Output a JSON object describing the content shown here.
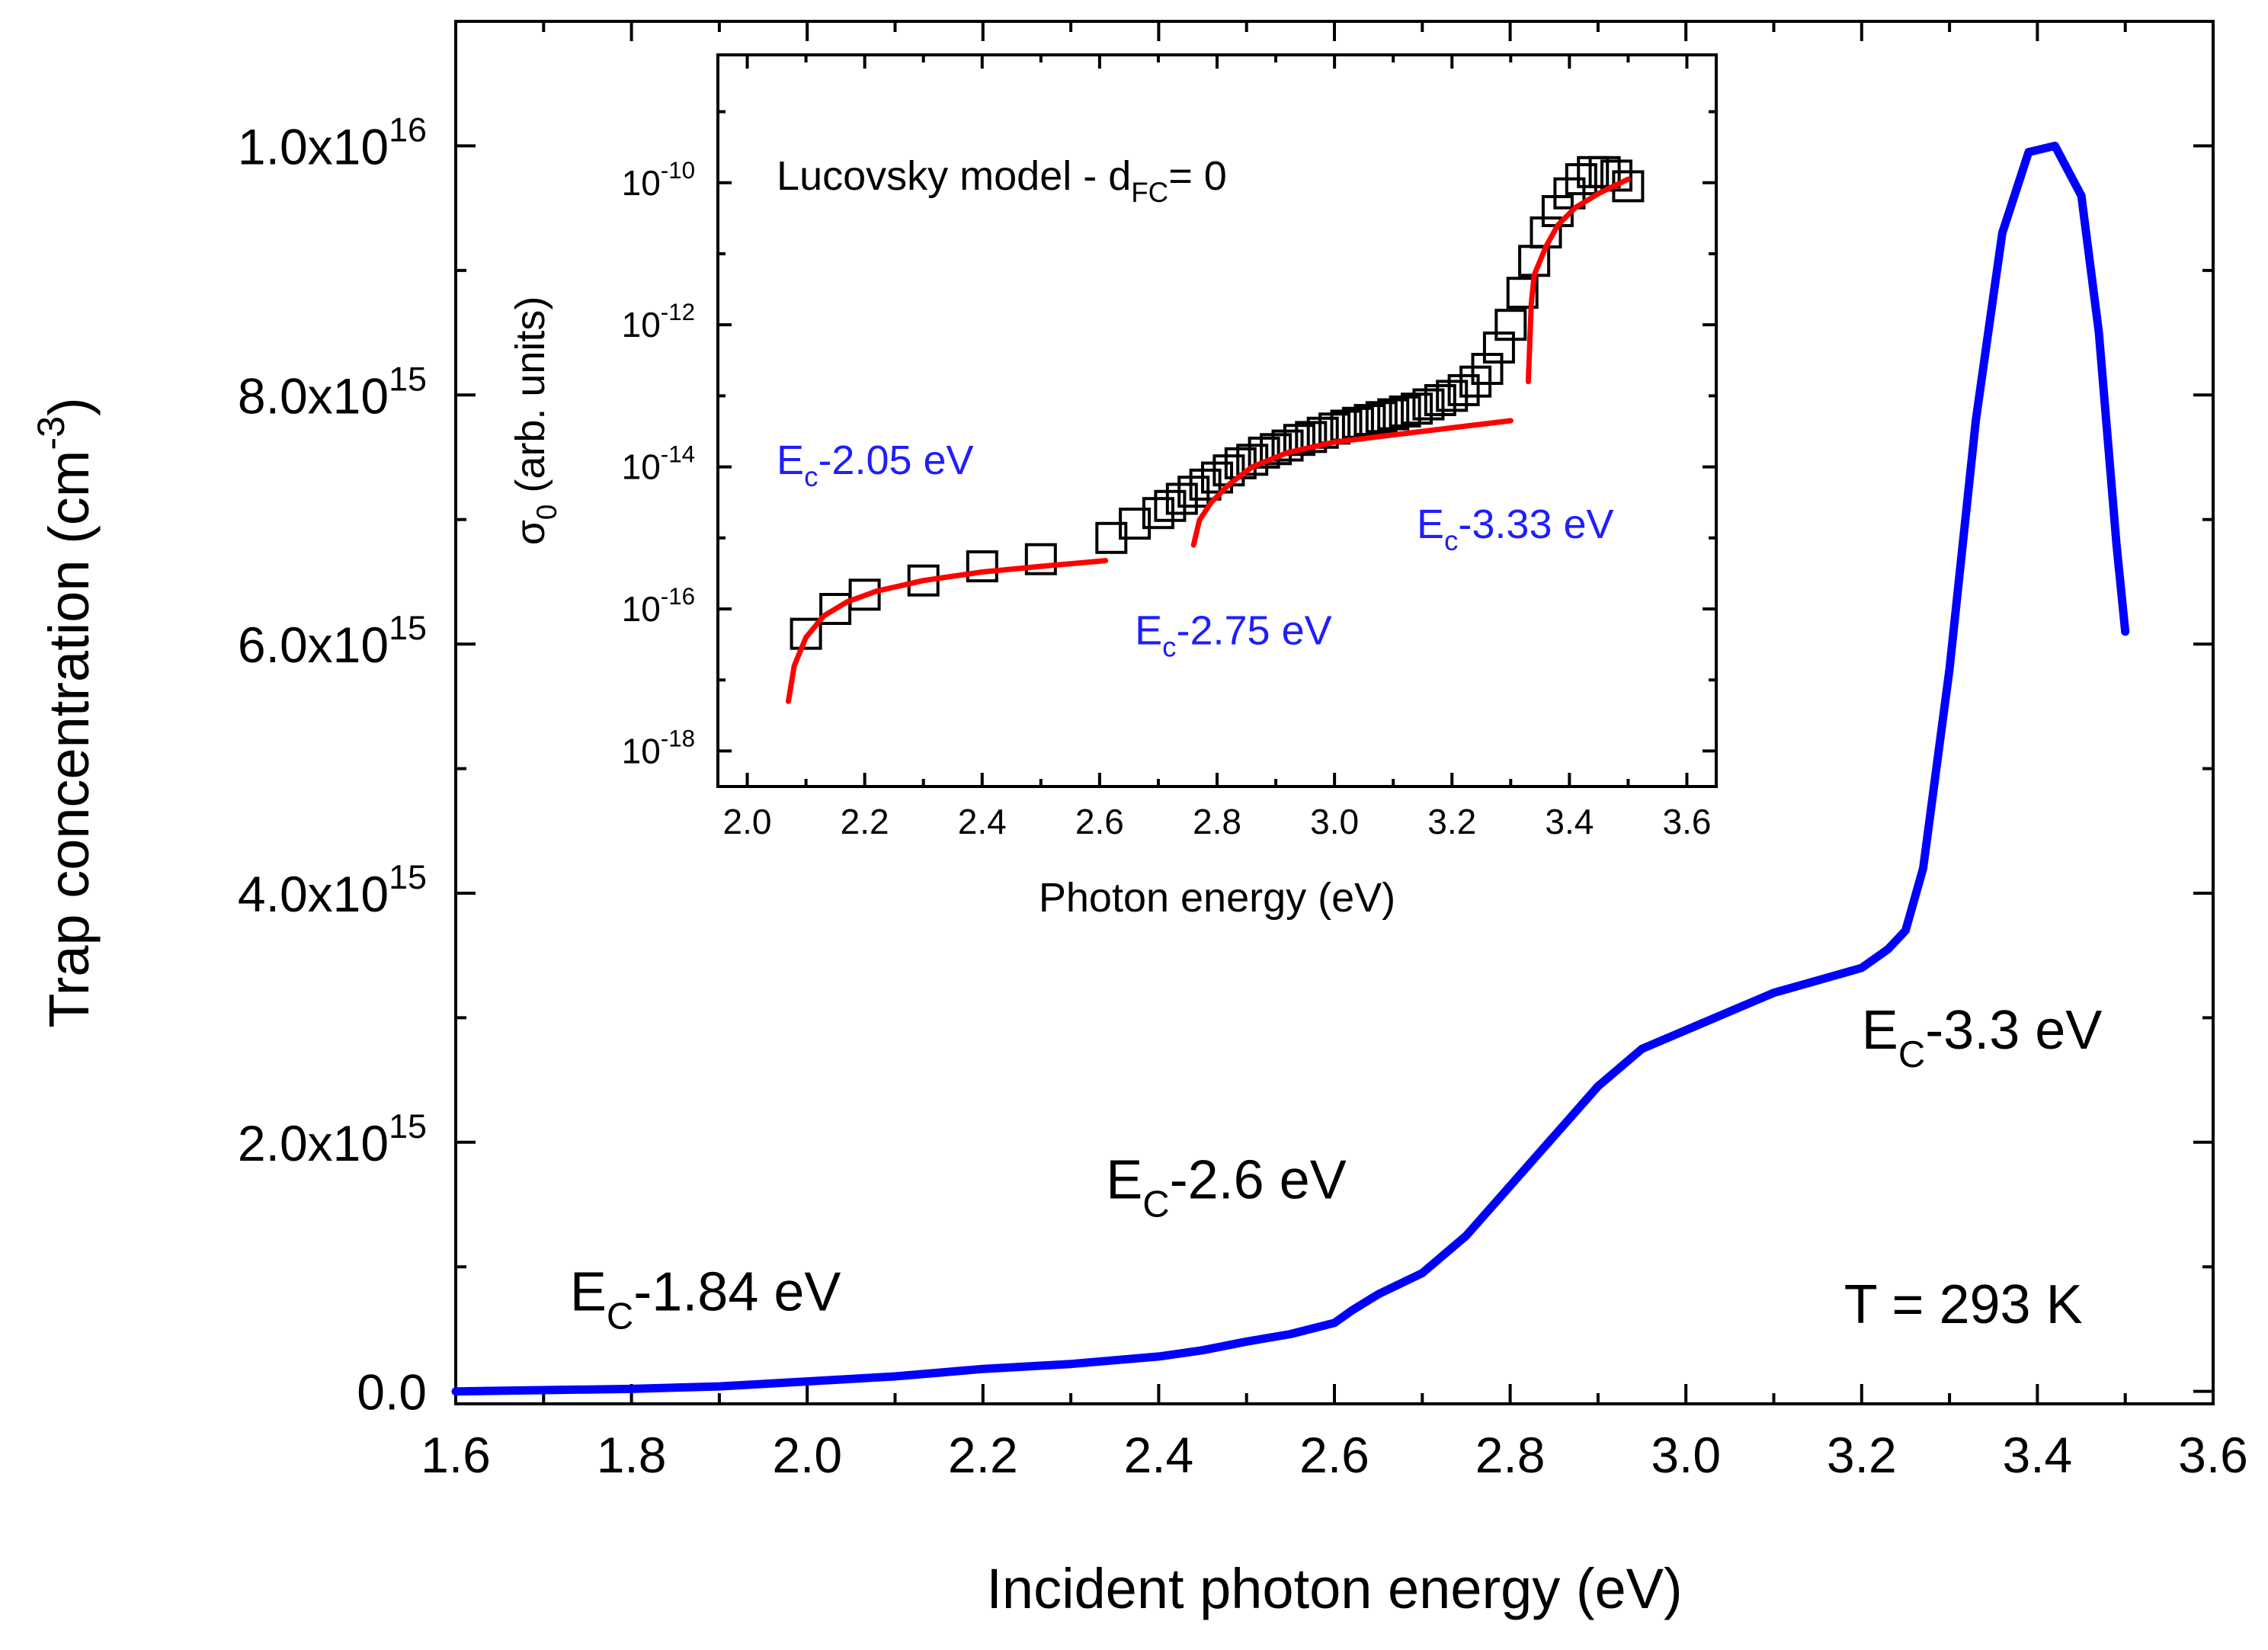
{
  "chart_data": [
    {
      "id": "main",
      "type": "line",
      "xlabel": "Incident photon energy (eV)",
      "ylabel": "Trap concentration (cm",
      "ylabel_sup": "-3",
      "ylabel_close": ")",
      "xlim": [
        1.6,
        3.6
      ],
      "ylim": [
        -100000000000000.0,
        1.1e+16
      ],
      "x_ticks": [
        "1.6",
        "1.8",
        "2.0",
        "2.2",
        "2.4",
        "2.6",
        "2.8",
        "3.0",
        "3.2",
        "3.4",
        "3.6"
      ],
      "y_ticks": [
        {
          "value": 0,
          "base": "0.0",
          "exp": ""
        },
        {
          "value": 2000000000000000.0,
          "base": "2.0x10",
          "exp": "15"
        },
        {
          "value": 4000000000000000.0,
          "base": "4.0x10",
          "exp": "15"
        },
        {
          "value": 6000000000000000.0,
          "base": "6.0x10",
          "exp": "15"
        },
        {
          "value": 8000000000000000.0,
          "base": "8.0x10",
          "exp": "15"
        },
        {
          "value": 1e+16,
          "base": "1.0x10",
          "exp": "16"
        }
      ],
      "series": [
        {
          "name": "Trap concentration",
          "color": "#0000ff",
          "x": [
            1.6,
            1.7,
            1.8,
            1.9,
            2.0,
            2.1,
            2.2,
            2.3,
            2.4,
            2.45,
            2.5,
            2.55,
            2.6,
            2.62,
            2.65,
            2.7,
            2.75,
            2.8,
            2.85,
            2.9,
            2.95,
            3.0,
            3.05,
            3.1,
            3.15,
            3.2,
            3.23,
            3.25,
            3.27,
            3.3,
            3.33,
            3.36,
            3.39,
            3.42,
            3.45,
            3.47,
            3.49,
            3.5
          ],
          "values": [
            0,
            10000000000000.0,
            20000000000000.0,
            40000000000000.0,
            80000000000000.0,
            120000000000000.0,
            180000000000000.0,
            220000000000000.0,
            280000000000000.0,
            330000000000000.0,
            400000000000000.0,
            460000000000000.0,
            550000000000000.0,
            650000000000000.0,
            780000000000000.0,
            950000000000000.0,
            1250000000000000.0,
            1650000000000000.0,
            2050000000000000.0,
            2450000000000000.0,
            2750000000000000.0,
            2900000000000000.0,
            3050000000000000.0,
            3200000000000000.0,
            3300000000000000.0,
            3400000000000000.0,
            3550000000000000.0,
            3700000000000000.0,
            4200000000000000.0,
            5800000000000000.0,
            7800000000000000.0,
            9300000000000000.0,
            9950000000000000.0,
            1e+16,
            9600000000000000.0,
            8500000000000000.0,
            6800000000000000.0,
            6100000000000000.0
          ]
        }
      ],
      "annotations": [
        {
          "id": "ec184",
          "x": 1.73,
          "y": 650000000000000.0,
          "base": "E",
          "sub": "C",
          "rest": "-1.84 eV"
        },
        {
          "id": "ec26",
          "x": 2.34,
          "y": 1550000000000000.0,
          "base": "E",
          "sub": "C",
          "rest": "-2.6 eV"
        },
        {
          "id": "ec33",
          "x": 3.2,
          "y": 2750000000000000.0,
          "base": "E",
          "sub": "C",
          "rest": "-3.3 eV"
        },
        {
          "id": "temp",
          "x": 3.18,
          "y": 550000000000000.0,
          "text": "T = 293 K"
        }
      ]
    },
    {
      "id": "inset",
      "type": "scatter",
      "xlabel": "Photon energy (eV)",
      "ylabel_sym": "σ",
      "ylabel_sub": "0",
      "ylabel_rest": " (arb. units)",
      "yscale": "log",
      "xlim": [
        1.95,
        3.65
      ],
      "ylim_exp": [
        -18.5,
        -8.2
      ],
      "x_ticks": [
        "2.0",
        "2.2",
        "2.4",
        "2.6",
        "2.8",
        "3.0",
        "3.2",
        "3.4",
        "3.6"
      ],
      "y_ticks": [
        {
          "exp": -18,
          "base": "10",
          "sup": "-18"
        },
        {
          "exp": -16,
          "base": "10",
          "sup": "-16"
        },
        {
          "exp": -14,
          "base": "10",
          "sup": "-14"
        },
        {
          "exp": -12,
          "base": "10",
          "sup": "-12"
        },
        {
          "exp": -10,
          "base": "10",
          "sup": "-10"
        }
      ],
      "series": [
        {
          "name": "measured σ0",
          "marker": "open-square",
          "color": "#000000",
          "x": [
            2.1,
            2.15,
            2.2,
            2.3,
            2.4,
            2.5,
            2.62,
            2.66,
            2.7,
            2.72,
            2.74,
            2.76,
            2.78,
            2.8,
            2.82,
            2.84,
            2.86,
            2.88,
            2.9,
            2.92,
            2.94,
            2.96,
            2.98,
            3.0,
            3.02,
            3.04,
            3.06,
            3.08,
            3.1,
            3.12,
            3.14,
            3.16,
            3.18,
            3.2,
            3.22,
            3.24,
            3.26,
            3.28,
            3.3,
            3.32,
            3.34,
            3.36,
            3.38,
            3.4,
            3.42,
            3.44,
            3.46,
            3.48,
            3.5
          ],
          "exponent_values": [
            -16.35,
            -16.0,
            -15.8,
            -15.6,
            -15.4,
            -15.3,
            -15.0,
            -14.8,
            -14.65,
            -14.55,
            -14.45,
            -14.35,
            -14.25,
            -14.15,
            -14.05,
            -13.95,
            -13.9,
            -13.8,
            -13.75,
            -13.7,
            -13.62,
            -13.58,
            -13.52,
            -13.46,
            -13.42,
            -13.38,
            -13.34,
            -13.3,
            -13.26,
            -13.22,
            -13.18,
            -13.12,
            -13.06,
            -13.0,
            -12.92,
            -12.8,
            -12.62,
            -12.32,
            -12.0,
            -11.55,
            -11.1,
            -10.7,
            -10.4,
            -10.15,
            -9.95,
            -9.85,
            -9.85,
            -9.9,
            -10.05
          ]
        },
        {
          "name": "Lucovsky fit Ec-2.05 eV",
          "color": "#ff0000",
          "x": [
            2.07,
            2.08,
            2.1,
            2.13,
            2.17,
            2.22,
            2.3,
            2.4,
            2.5,
            2.61
          ],
          "exponent_values": [
            -17.3,
            -16.8,
            -16.4,
            -16.1,
            -15.9,
            -15.75,
            -15.6,
            -15.48,
            -15.4,
            -15.32
          ]
        },
        {
          "name": "Lucovsky fit Ec-2.75 eV",
          "color": "#ff0000",
          "x": [
            2.76,
            2.77,
            2.79,
            2.82,
            2.86,
            2.92,
            3.0,
            3.1,
            3.2,
            3.3
          ],
          "exponent_values": [
            -15.1,
            -14.75,
            -14.5,
            -14.25,
            -14.0,
            -13.8,
            -13.65,
            -13.55,
            -13.45,
            -13.35
          ]
        },
        {
          "name": "Lucovsky fit Ec-3.33 eV",
          "color": "#ff0000",
          "x": [
            3.33,
            3.335,
            3.34,
            3.36,
            3.38,
            3.41,
            3.45,
            3.5
          ],
          "exponent_values": [
            -12.8,
            -11.7,
            -11.3,
            -10.9,
            -10.6,
            -10.35,
            -10.15,
            -9.95
          ]
        }
      ],
      "annotations": [
        {
          "id": "model",
          "x": 2.05,
          "y_exp": -10.1,
          "color": "#000000",
          "base": "Lucovsky model - d",
          "sub": "FC",
          "rest": "= 0"
        },
        {
          "id": "ec205",
          "x": 2.05,
          "y_exp": -14.1,
          "color": "#1e1eff",
          "base": "E",
          "sub": "c",
          "rest": "-2.05 eV"
        },
        {
          "id": "ec275",
          "x": 2.66,
          "y_exp": -16.5,
          "color": "#1e1eff",
          "base": "E",
          "sub": "c",
          "rest": "-2.75 eV"
        },
        {
          "id": "ec333",
          "x": 3.14,
          "y_exp": -15.0,
          "color": "#1e1eff",
          "base": "E",
          "sub": "c",
          "rest": "-3.33 eV"
        }
      ]
    }
  ]
}
